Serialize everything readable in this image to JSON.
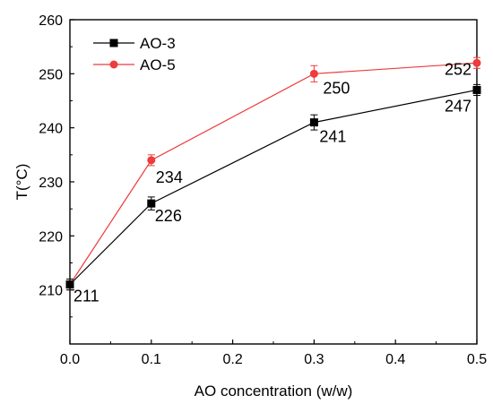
{
  "chart_data": {
    "type": "line",
    "title": "",
    "xlabel": "AO concentration (w/w)",
    "ylabel": "T(°C)",
    "xlim": [
      0.0,
      0.5
    ],
    "ylim": [
      200,
      260
    ],
    "xticks": [
      "0.0",
      "0.1",
      "0.2",
      "0.3",
      "0.4",
      "0.5"
    ],
    "yticks": [
      "210",
      "220",
      "230",
      "240",
      "250",
      "260"
    ],
    "grid": false,
    "legend_position": "top-left",
    "series": [
      {
        "name": "AO-3",
        "color": "#000000",
        "marker": "square",
        "points": [
          {
            "x": 0.0,
            "y": 211,
            "err": 1.0,
            "label": "211"
          },
          {
            "x": 0.1,
            "y": 226,
            "err": 1.2,
            "label": "226"
          },
          {
            "x": 0.3,
            "y": 241,
            "err": 1.4,
            "label": "241"
          },
          {
            "x": 0.5,
            "y": 247,
            "err": 1.0,
            "label": "247"
          }
        ]
      },
      {
        "name": "AO-5",
        "color": "#ee3b3b",
        "marker": "circle",
        "points": [
          {
            "x": 0.0,
            "y": 211,
            "err": 1.0,
            "label": ""
          },
          {
            "x": 0.1,
            "y": 234,
            "err": 1.0,
            "label": "234"
          },
          {
            "x": 0.3,
            "y": 250,
            "err": 1.5,
            "label": "250"
          },
          {
            "x": 0.5,
            "y": 252,
            "err": 1.0,
            "label": "252"
          }
        ]
      }
    ]
  }
}
